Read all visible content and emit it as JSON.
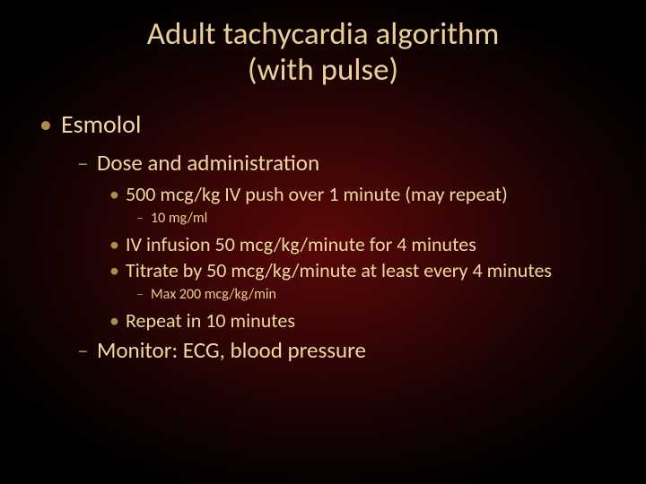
{
  "colors": {
    "text_primary": "#f0d8a0",
    "text_secondary": "#e8d098",
    "bullet_color": "#b38a4a",
    "bg_center": "#5a0808",
    "bg_mid": "#3a0505",
    "bg_outer": "#000000"
  },
  "typography": {
    "font_family": "Calibri",
    "title_fontsize": 35,
    "lvl1_fontsize": 28,
    "lvl2_fontsize": 25,
    "lvl3_fontsize": 22,
    "lvl4_fontsize": 16
  },
  "slide": {
    "title_line1": "Adult tachycardia algorithm",
    "title_line2": "(with pulse)",
    "content": {
      "lvl1_item": "Esmolol",
      "lvl2_item1": "Dose and administration",
      "lvl3_item1": "500 mcg/kg IV push over 1 minute (may repeat)",
      "lvl4_item1": "10 mg/ml",
      "lvl3_item2": "IV infusion 50 mcg/kg/minute for 4 minutes",
      "lvl3_item3": "Titrate by 50 mcg/kg/minute at least every 4 minutes",
      "lvl4_item2": "Max 200 mcg/kg/min",
      "lvl3_item4": "Repeat in 10 minutes",
      "lvl2_item2": "Monitor: ECG, blood pressure"
    },
    "bullets": {
      "dot": "•",
      "dash": "–"
    }
  }
}
